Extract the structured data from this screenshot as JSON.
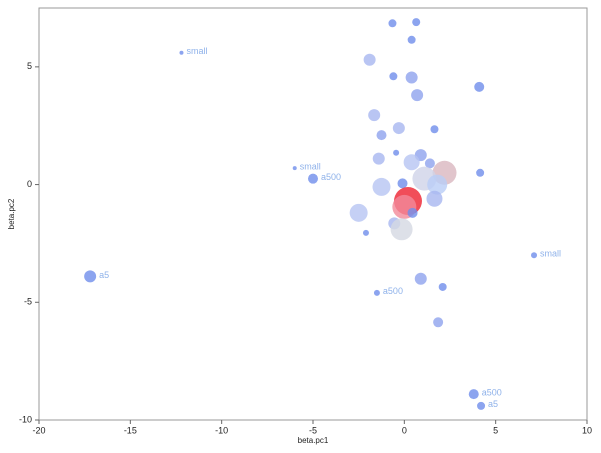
{
  "chart_data": {
    "type": "scatter",
    "x_label": "beta.pc1",
    "y_label": "beta.pc2",
    "xlim": [
      -20,
      10
    ],
    "ylim": [
      -10,
      7.5
    ],
    "xticks": [
      -20,
      -15,
      -10,
      -5,
      0,
      5,
      10
    ],
    "yticks": [
      -10,
      -5,
      0,
      5
    ],
    "x": [
      -12.2,
      -6.0,
      -5.0,
      -17.2,
      -1.5,
      7.1,
      3.8,
      4.2,
      -0.65,
      0.65,
      0.4,
      -1.9,
      -0.6,
      0.4,
      4.1,
      0.7,
      -1.65,
      -0.3,
      -1.25,
      1.65,
      -0.45,
      -1.4,
      0.9,
      0.4,
      1.4,
      4.15,
      2.2,
      1.1,
      -1.25,
      1.8,
      -0.1,
      0.2,
      0.0,
      1.65,
      -2.5,
      -0.55,
      -0.15,
      -2.1,
      0.45,
      0.9,
      2.1,
      1.85
    ],
    "y": [
      5.6,
      0.7,
      0.25,
      -3.9,
      -4.6,
      -3.0,
      -8.9,
      -9.4,
      6.85,
      6.9,
      6.15,
      5.3,
      4.6,
      4.55,
      4.15,
      3.8,
      2.95,
      2.4,
      2.1,
      2.35,
      1.35,
      1.1,
      1.25,
      0.95,
      0.9,
      0.5,
      0.5,
      0.25,
      -0.1,
      0.0,
      0.05,
      -0.7,
      -0.95,
      -0.6,
      -1.2,
      -1.65,
      -1.9,
      -2.05,
      -1.2,
      -4.0,
      -4.35,
      -5.85
    ],
    "sizes": [
      2,
      2,
      5,
      6,
      3,
      3,
      5,
      4,
      4,
      4,
      4,
      6,
      4,
      6,
      5,
      6,
      6,
      6,
      5,
      4,
      3,
      6,
      6,
      8,
      5,
      4,
      12,
      12,
      9,
      10,
      5,
      14,
      12,
      8,
      9,
      6,
      11,
      3,
      5,
      6,
      4,
      5
    ],
    "colors": [
      "#6f8deb",
      "#6f8deb",
      "#6f8deb",
      "#6f8deb",
      "#6f8deb",
      "#6f8deb",
      "#6f8deb",
      "#6f8deb",
      "#6f8deb",
      "#6f8deb",
      "#6f8deb",
      "#a7b7f0",
      "#6f8deb",
      "#8ea3ee",
      "#6f8deb",
      "#8ea3ee",
      "#a7b7f0",
      "#a7b7f0",
      "#8ea3ee",
      "#6f8deb",
      "#6f8deb",
      "#a7b7f0",
      "#8ea3ee",
      "#b7c4f2",
      "#8ea3ee",
      "#6f8deb",
      "#d9b7bf",
      "#cfd3e8",
      "#b7c4f2",
      "#b9cdf6",
      "#6f8deb",
      "#ee2030",
      "#f28a9a",
      "#a7b7f0",
      "#b7c4f2",
      "#a7b7f0",
      "#d4d8e2",
      "#6f8deb",
      "#6f8deb",
      "#8ea3ee",
      "#6f8deb",
      "#8ea3ee"
    ],
    "labels": [
      "small",
      "small",
      "a500",
      "a5",
      "a500",
      "small",
      "a500",
      "a5",
      null,
      null,
      null,
      null,
      null,
      null,
      null,
      null,
      null,
      null,
      null,
      null,
      null,
      null,
      null,
      null,
      null,
      null,
      null,
      null,
      null,
      null,
      null,
      null,
      null,
      null,
      null,
      null,
      null,
      null,
      null,
      null,
      null,
      null
    ]
  }
}
